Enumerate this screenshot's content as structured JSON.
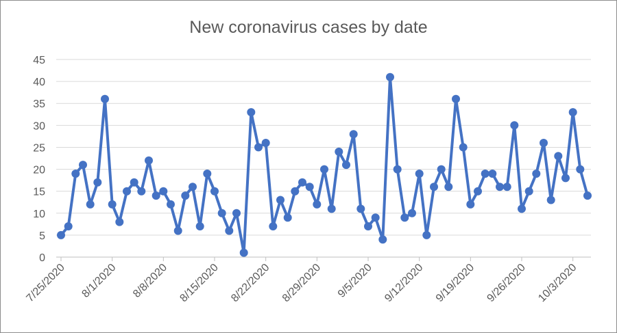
{
  "chart_data": {
    "type": "line",
    "title": "New coronavirus cases by date",
    "xlabel": "",
    "ylabel": "",
    "ylim": [
      0,
      45
    ],
    "yticks": [
      0,
      5,
      10,
      15,
      20,
      25,
      30,
      35,
      40,
      45
    ],
    "xticks": [
      "7/25/2020",
      "8/1/2020",
      "8/8/2020",
      "8/15/2020",
      "8/22/2020",
      "8/29/2020",
      "9/5/2020",
      "9/12/2020",
      "9/19/2020",
      "9/26/2020",
      "10/3/2020"
    ],
    "x_start": "7/25/2020",
    "x_end": "10/5/2020",
    "grid": "horizontal",
    "legend": "none",
    "series": [
      {
        "color": "#4472C4",
        "values": [
          5,
          7,
          19,
          21,
          12,
          17,
          36,
          12,
          8,
          15,
          17,
          15,
          22,
          14,
          15,
          12,
          6,
          14,
          16,
          7,
          19,
          15,
          10,
          6,
          10,
          1,
          33,
          25,
          26,
          7,
          13,
          9,
          15,
          17,
          16,
          12,
          20,
          11,
          24,
          21,
          28,
          11,
          7,
          9,
          4,
          41,
          20,
          9,
          10,
          19,
          5,
          16,
          20,
          16,
          36,
          25,
          12,
          15,
          19,
          19,
          16,
          16,
          30,
          11,
          15,
          19,
          26,
          13,
          23,
          18,
          33,
          20,
          14
        ]
      }
    ]
  }
}
